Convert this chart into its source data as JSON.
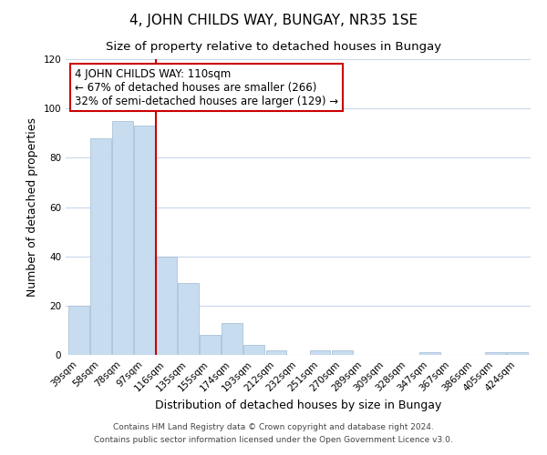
{
  "title": "4, JOHN CHILDS WAY, BUNGAY, NR35 1SE",
  "subtitle": "Size of property relative to detached houses in Bungay",
  "xlabel": "Distribution of detached houses by size in Bungay",
  "ylabel": "Number of detached properties",
  "categories": [
    "39sqm",
    "58sqm",
    "78sqm",
    "97sqm",
    "116sqm",
    "135sqm",
    "155sqm",
    "174sqm",
    "193sqm",
    "212sqm",
    "232sqm",
    "251sqm",
    "270sqm",
    "289sqm",
    "309sqm",
    "328sqm",
    "347sqm",
    "367sqm",
    "386sqm",
    "405sqm",
    "424sqm"
  ],
  "values": [
    20,
    88,
    95,
    93,
    40,
    29,
    8,
    13,
    4,
    2,
    0,
    2,
    2,
    0,
    0,
    0,
    1,
    0,
    0,
    1,
    1
  ],
  "bar_color": "#c8dcf0",
  "bar_edge_color": "#a0b8d0",
  "highlight_bar_index": 4,
  "highlight_line_color": "#cc0000",
  "ylim": [
    0,
    120
  ],
  "yticks": [
    0,
    20,
    40,
    60,
    80,
    100,
    120
  ],
  "annotation_text": "4 JOHN CHILDS WAY: 110sqm\n← 67% of detached houses are smaller (266)\n32% of semi-detached houses are larger (129) →",
  "annotation_box_color": "#ffffff",
  "annotation_box_edge": "#cc0000",
  "footer_line1": "Contains HM Land Registry data © Crown copyright and database right 2024.",
  "footer_line2": "Contains public sector information licensed under the Open Government Licence v3.0.",
  "background_color": "#ffffff",
  "grid_color": "#c8d8ec",
  "title_fontsize": 11,
  "subtitle_fontsize": 9.5,
  "axis_label_fontsize": 9,
  "tick_fontsize": 7.5,
  "annotation_fontsize": 8.5,
  "footer_fontsize": 6.5
}
